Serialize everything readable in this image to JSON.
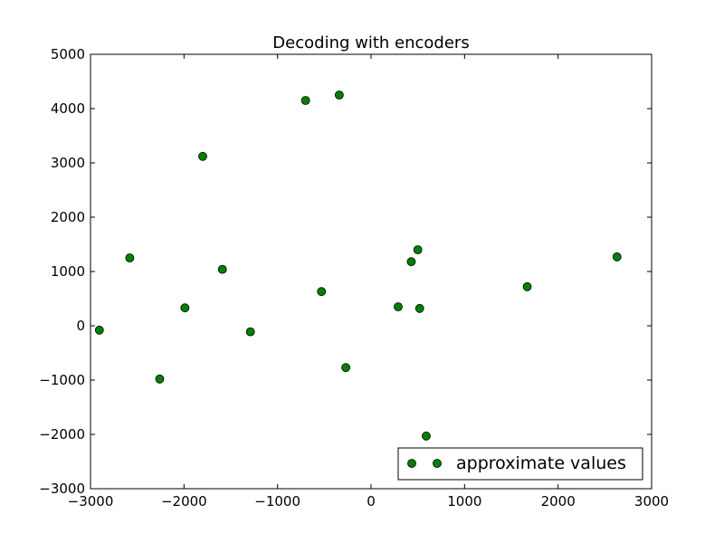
{
  "chart_data": {
    "type": "scatter",
    "title": "Decoding with encoders",
    "xlabel": "",
    "ylabel": "",
    "xlim": [
      -3000,
      3000
    ],
    "ylim": [
      -3000,
      5000
    ],
    "xticks": [
      -3000,
      -2000,
      -1000,
      0,
      1000,
      2000,
      3000
    ],
    "yticks": [
      -3000,
      -2000,
      -1000,
      0,
      1000,
      2000,
      3000,
      4000,
      5000
    ],
    "xtick_labels": [
      "−3000",
      "−2000",
      "−1000",
      "0",
      "1000",
      "2000",
      "3000"
    ],
    "ytick_labels": [
      "−3000",
      "−2000",
      "−1000",
      "0",
      "1000",
      "2000",
      "3000",
      "4000",
      "5000"
    ],
    "grid": false,
    "legend": {
      "position": "lower-right",
      "entries": [
        "approximate values"
      ]
    },
    "series": [
      {
        "name": "approximate values",
        "color": "#008000",
        "marker": "circle",
        "x": [
          -2905,
          -2580,
          -2260,
          -1990,
          -1800,
          -1590,
          -1290,
          -700,
          -530,
          -340,
          -270,
          290,
          430,
          500,
          520,
          590,
          1670,
          2630
        ],
        "y": [
          -80,
          1250,
          -980,
          330,
          3120,
          1040,
          -110,
          4150,
          630,
          4250,
          -770,
          350,
          1180,
          1400,
          320,
          -2030,
          720,
          1270
        ]
      }
    ]
  }
}
